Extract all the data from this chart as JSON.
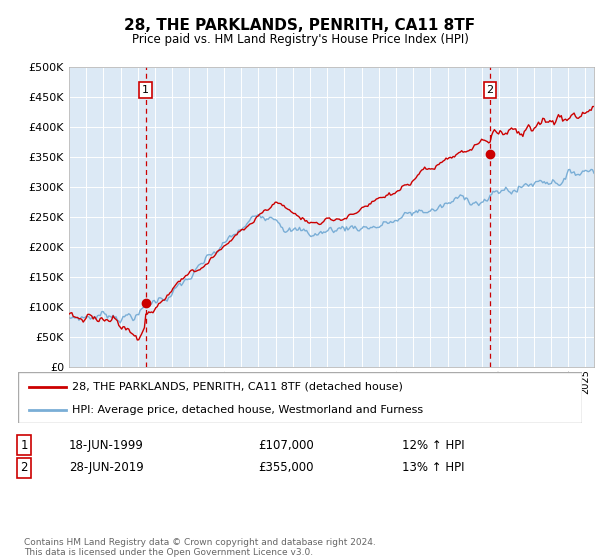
{
  "title": "28, THE PARKLANDS, PENRITH, CA11 8TF",
  "subtitle": "Price paid vs. HM Land Registry's House Price Index (HPI)",
  "ylim": [
    0,
    500000
  ],
  "yticks": [
    0,
    50000,
    100000,
    150000,
    200000,
    250000,
    300000,
    350000,
    400000,
    450000,
    500000
  ],
  "background_color": "#ffffff",
  "plot_bg_color": "#dce9f5",
  "grid_color": "#ffffff",
  "sale1": {
    "date": "18-JUN-1999",
    "price": 107000,
    "label": "1",
    "hpi_pct": "12% ↑ HPI"
  },
  "sale2": {
    "date": "28-JUN-2019",
    "price": 355000,
    "label": "2",
    "hpi_pct": "13% ↑ HPI"
  },
  "legend_property": "28, THE PARKLANDS, PENRITH, CA11 8TF (detached house)",
  "legend_hpi": "HPI: Average price, detached house, Westmorland and Furness",
  "property_color": "#cc0000",
  "hpi_color": "#7aaed6",
  "dashed_line_color": "#cc0000",
  "footer": "Contains HM Land Registry data © Crown copyright and database right 2024.\nThis data is licensed under the Open Government Licence v3.0."
}
